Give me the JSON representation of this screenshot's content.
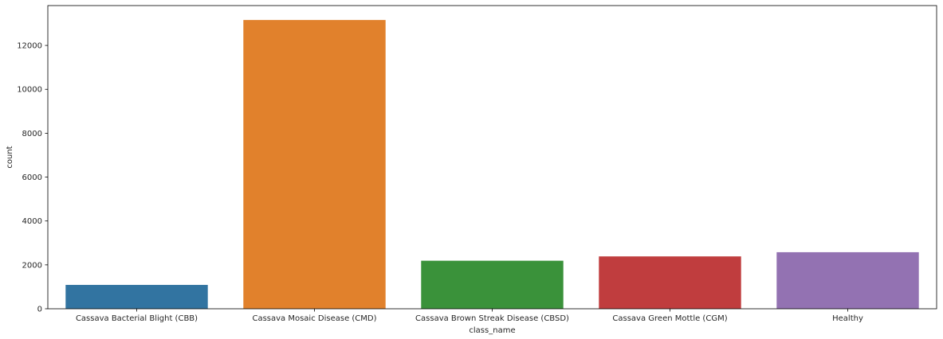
{
  "chart_data": {
    "type": "bar",
    "title": "",
    "xlabel": "class_name",
    "ylabel": "count",
    "categories": [
      "Cassava Bacterial Blight (CBB)",
      "Cassava Mosaic Disease (CMD)",
      "Cassava Brown Streak Disease (CBSD)",
      "Cassava Green Mottle (CGM)",
      "Healthy"
    ],
    "values": [
      1087,
      13158,
      2189,
      2386,
      2577
    ],
    "colors": [
      "#3274a1",
      "#e1812c",
      "#3a923a",
      "#c03d3e",
      "#9372b2"
    ],
    "ylim": [
      0,
      13816
    ],
    "yticks": [
      0,
      2000,
      4000,
      6000,
      8000,
      10000,
      12000
    ],
    "grid": false,
    "legend": "none"
  }
}
